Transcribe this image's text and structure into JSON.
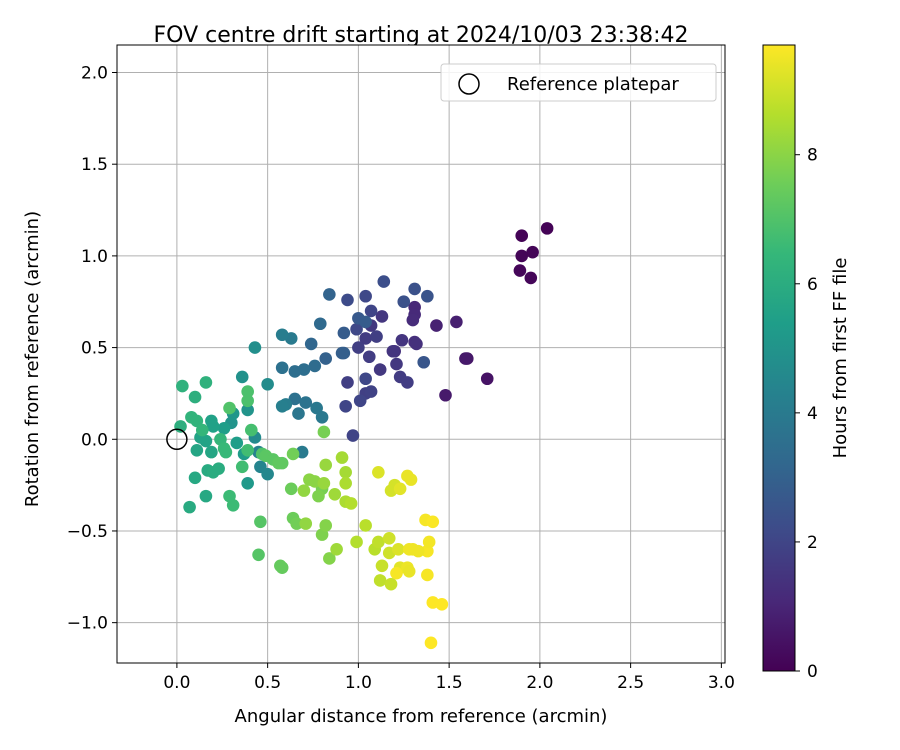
{
  "chart_data": {
    "type": "scatter",
    "title": "FOV centre drift starting at 2024/10/03 23:38:42",
    "xlabel": "Angular distance from reference (arcmin)",
    "ylabel": "Rotation from reference (arcmin)",
    "xlim": [
      -0.33,
      3.02
    ],
    "ylim": [
      -1.22,
      2.15
    ],
    "xticks": [
      0.0,
      0.5,
      1.0,
      1.5,
      2.0,
      2.5,
      3.0
    ],
    "xtick_labels": [
      "0.0",
      "0.5",
      "1.0",
      "1.5",
      "2.0",
      "2.5",
      "3.0"
    ],
    "yticks": [
      -1.0,
      -0.5,
      0.0,
      0.5,
      1.0,
      1.5,
      2.0
    ],
    "ytick_labels": [
      "−1.0",
      "−0.5",
      "0.0",
      "0.5",
      "1.0",
      "1.5",
      "2.0"
    ],
    "grid": true,
    "legend_position": "top-right",
    "legend": [
      {
        "label": "Reference platepar",
        "marker": "open-circle"
      }
    ],
    "reference_point": {
      "x": 0.0,
      "y": 0.0
    },
    "colorbar": {
      "label": "Hours from first FF file",
      "range": [
        0,
        9.7
      ],
      "ticks": [
        0,
        2,
        4,
        6,
        8
      ],
      "tick_labels": [
        "0",
        "2",
        "4",
        "6",
        "8"
      ],
      "colormap": "viridis"
    },
    "points": [
      [
        1.9,
        1.11,
        0.05
      ],
      [
        2.04,
        1.15,
        0.05
      ],
      [
        1.96,
        1.02,
        0.1
      ],
      [
        1.9,
        1.0,
        0.1
      ],
      [
        1.89,
        0.92,
        0.15
      ],
      [
        1.95,
        0.88,
        0.15
      ],
      [
        1.71,
        0.33,
        0.5
      ],
      [
        1.6,
        0.44,
        0.6
      ],
      [
        1.59,
        0.44,
        0.65
      ],
      [
        1.48,
        0.24,
        0.7
      ],
      [
        1.54,
        0.64,
        0.85
      ],
      [
        1.43,
        0.62,
        0.9
      ],
      [
        1.31,
        0.72,
        1.1
      ],
      [
        1.31,
        0.68,
        1.15
      ],
      [
        1.3,
        0.65,
        1.2
      ],
      [
        1.31,
        0.53,
        1.3
      ],
      [
        1.32,
        0.52,
        1.35
      ],
      [
        1.2,
        0.48,
        1.4
      ],
      [
        1.24,
        0.54,
        1.5
      ],
      [
        1.13,
        0.67,
        1.55
      ],
      [
        1.07,
        0.62,
        1.6
      ],
      [
        1.04,
        0.55,
        1.7
      ],
      [
        1.06,
        0.45,
        1.75
      ],
      [
        1.0,
        0.5,
        1.8
      ],
      [
        0.94,
        0.31,
        1.8
      ],
      [
        1.04,
        0.25,
        1.85
      ],
      [
        1.07,
        0.26,
        1.9
      ],
      [
        0.97,
        0.02,
        1.95
      ],
      [
        0.93,
        0.18,
        2.0
      ],
      [
        1.01,
        0.21,
        2.0
      ],
      [
        1.04,
        0.33,
        2.1
      ],
      [
        1.19,
        0.48,
        1.5
      ],
      [
        1.21,
        0.41,
        1.6
      ],
      [
        1.23,
        0.34,
        1.7
      ],
      [
        1.27,
        0.31,
        1.75
      ],
      [
        1.12,
        0.38,
        1.6
      ],
      [
        0.99,
        0.6,
        2.1
      ],
      [
        1.1,
        0.56,
        1.8
      ],
      [
        1.07,
        0.7,
        2.0
      ],
      [
        1.04,
        0.78,
        2.1
      ],
      [
        0.94,
        0.76,
        2.2
      ],
      [
        1.14,
        0.86,
        2.3
      ],
      [
        1.25,
        0.75,
        2.4
      ],
      [
        1.31,
        0.82,
        2.4
      ],
      [
        1.38,
        0.78,
        2.5
      ],
      [
        1.36,
        0.42,
        2.6
      ],
      [
        1.0,
        0.66,
        2.7
      ],
      [
        1.04,
        0.64,
        2.8
      ],
      [
        0.92,
        0.58,
        2.8
      ],
      [
        0.92,
        0.47,
        2.9
      ],
      [
        0.91,
        0.47,
        2.9
      ],
      [
        0.82,
        0.44,
        3.0
      ],
      [
        0.84,
        0.79,
        3.1
      ],
      [
        0.74,
        0.52,
        3.2
      ],
      [
        0.79,
        0.63,
        3.3
      ],
      [
        0.76,
        0.4,
        3.4
      ],
      [
        0.7,
        0.38,
        3.5
      ],
      [
        0.65,
        0.37,
        3.5
      ],
      [
        0.58,
        0.39,
        3.6
      ],
      [
        0.65,
        0.22,
        3.6
      ],
      [
        0.71,
        0.2,
        3.7
      ],
      [
        0.67,
        0.14,
        3.8
      ],
      [
        0.77,
        0.17,
        3.9
      ],
      [
        0.8,
        0.12,
        3.9
      ],
      [
        0.69,
        -0.07,
        4.0
      ],
      [
        0.63,
        0.55,
        4.0
      ],
      [
        0.58,
        0.57,
        4.1
      ],
      [
        0.6,
        0.19,
        4.1
      ],
      [
        0.58,
        0.18,
        4.2
      ],
      [
        0.45,
        -0.07,
        4.3
      ],
      [
        0.46,
        -0.15,
        4.4
      ],
      [
        0.5,
        -0.19,
        4.5
      ],
      [
        0.43,
        0.01,
        4.6
      ],
      [
        0.5,
        0.3,
        4.7
      ],
      [
        0.43,
        0.5,
        4.8
      ],
      [
        0.36,
        0.34,
        4.9
      ],
      [
        0.39,
        0.16,
        5.0
      ],
      [
        0.3,
        0.09,
        5.0
      ],
      [
        0.31,
        0.14,
        5.1
      ],
      [
        0.39,
        -0.24,
        5.2
      ],
      [
        0.37,
        -0.08,
        5.3
      ],
      [
        0.33,
        -0.02,
        5.4
      ],
      [
        0.26,
        0.06,
        5.4
      ],
      [
        0.2,
        0.07,
        5.5
      ],
      [
        0.19,
        0.1,
        5.5
      ],
      [
        0.16,
        -0.01,
        5.6
      ],
      [
        0.13,
        0.01,
        5.6
      ],
      [
        0.11,
        -0.06,
        5.7
      ],
      [
        0.19,
        -0.07,
        5.7
      ],
      [
        0.1,
        -0.21,
        5.8
      ],
      [
        0.16,
        -0.31,
        5.8
      ],
      [
        0.07,
        -0.37,
        5.9
      ],
      [
        0.17,
        -0.17,
        5.9
      ],
      [
        0.2,
        -0.18,
        6.0
      ],
      [
        0.23,
        -0.16,
        6.0
      ],
      [
        0.02,
        0.07,
        6.1
      ],
      [
        0.1,
        0.23,
        6.1
      ],
      [
        0.03,
        0.29,
        6.2
      ],
      [
        0.16,
        0.31,
        6.2
      ],
      [
        0.08,
        0.12,
        6.3
      ],
      [
        0.11,
        0.1,
        6.3
      ],
      [
        0.14,
        0.05,
        6.4
      ],
      [
        0.24,
        0.0,
        6.4
      ],
      [
        0.26,
        -0.05,
        6.5
      ],
      [
        0.27,
        -0.07,
        6.5
      ],
      [
        0.31,
        -0.36,
        6.6
      ],
      [
        0.29,
        -0.31,
        6.6
      ],
      [
        0.36,
        -0.15,
        6.7
      ],
      [
        0.39,
        -0.06,
        6.7
      ],
      [
        0.41,
        0.05,
        6.8
      ],
      [
        0.39,
        0.21,
        6.9
      ],
      [
        0.39,
        0.26,
        6.9
      ],
      [
        0.29,
        0.17,
        7.0
      ],
      [
        0.47,
        -0.08,
        7.0
      ],
      [
        0.46,
        -0.45,
        7.1
      ],
      [
        0.45,
        -0.63,
        7.1
      ],
      [
        0.49,
        -0.09,
        7.2
      ],
      [
        0.53,
        -0.11,
        7.2
      ],
      [
        0.56,
        -0.13,
        7.3
      ],
      [
        0.58,
        -0.13,
        7.3
      ],
      [
        0.58,
        -0.7,
        7.4
      ],
      [
        0.57,
        -0.69,
        7.4
      ],
      [
        0.63,
        -0.27,
        7.5
      ],
      [
        0.64,
        -0.43,
        7.5
      ],
      [
        0.66,
        -0.46,
        7.6
      ],
      [
        0.64,
        -0.08,
        7.6
      ],
      [
        0.81,
        0.04,
        7.7
      ],
      [
        0.8,
        -0.27,
        7.7
      ],
      [
        0.78,
        -0.31,
        7.8
      ],
      [
        0.8,
        -0.52,
        7.8
      ],
      [
        0.82,
        -0.47,
        7.9
      ],
      [
        0.84,
        -0.65,
        7.9
      ],
      [
        0.73,
        -0.22,
        8.0
      ],
      [
        0.76,
        -0.23,
        8.0
      ],
      [
        0.71,
        -0.46,
        8.1
      ],
      [
        0.7,
        -0.28,
        8.1
      ],
      [
        0.81,
        -0.24,
        8.2
      ],
      [
        0.82,
        -0.14,
        8.2
      ],
      [
        0.87,
        -0.3,
        8.3
      ],
      [
        0.88,
        -0.6,
        8.3
      ],
      [
        0.91,
        -0.1,
        8.4
      ],
      [
        0.93,
        -0.18,
        8.4
      ],
      [
        0.93,
        -0.24,
        8.5
      ],
      [
        0.93,
        -0.34,
        8.5
      ],
      [
        0.96,
        -0.35,
        8.6
      ],
      [
        0.99,
        -0.56,
        8.6
      ],
      [
        1.04,
        -0.47,
        8.7
      ],
      [
        1.09,
        -0.6,
        8.7
      ],
      [
        1.11,
        -0.56,
        8.8
      ],
      [
        1.12,
        -0.77,
        8.8
      ],
      [
        1.13,
        -0.69,
        8.9
      ],
      [
        1.18,
        -0.79,
        8.9
      ],
      [
        1.17,
        -0.54,
        9.0
      ],
      [
        1.17,
        -0.62,
        9.0
      ],
      [
        1.2,
        -0.25,
        9.1
      ],
      [
        1.18,
        -0.28,
        9.1
      ],
      [
        1.11,
        -0.18,
        9.2
      ],
      [
        1.22,
        -0.6,
        9.2
      ],
      [
        1.23,
        -0.7,
        9.3
      ],
      [
        1.23,
        -0.27,
        9.3
      ],
      [
        1.27,
        -0.2,
        9.4
      ],
      [
        1.29,
        -0.22,
        9.4
      ],
      [
        1.28,
        -0.6,
        9.5
      ],
      [
        1.3,
        -0.6,
        9.5
      ],
      [
        1.37,
        -0.44,
        9.6
      ],
      [
        1.38,
        -0.61,
        9.6
      ],
      [
        1.41,
        -0.45,
        9.65
      ],
      [
        1.41,
        -0.89,
        9.7
      ],
      [
        1.46,
        -0.9,
        9.7
      ],
      [
        1.4,
        -1.11,
        9.7
      ],
      [
        1.33,
        -0.61,
        9.5
      ],
      [
        1.21,
        -0.73,
        9.6
      ],
      [
        1.27,
        -0.7,
        9.45
      ],
      [
        1.39,
        -0.56,
        9.55
      ],
      [
        1.28,
        -0.72,
        9.4
      ],
      [
        1.38,
        -0.74,
        9.6
      ]
    ]
  }
}
